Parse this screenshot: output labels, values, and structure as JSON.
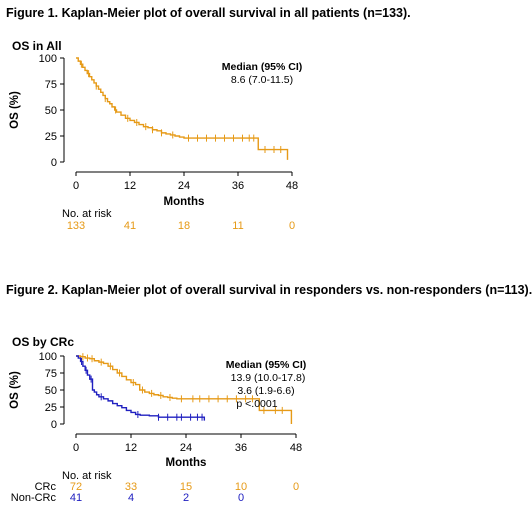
{
  "figure1": {
    "caption": "Figure 1. Kaplan-Meier plot of overall survival in all patients (n=133)."
  },
  "figure2": {
    "caption": "Figure 2. Kaplan-Meier plot of overall survival in responders vs. non-responders (n=113)."
  },
  "colors": {
    "orange": "#E69A17",
    "blue": "#2020C0",
    "axis": "#000000"
  },
  "chart_data": [
    {
      "type": "line",
      "title": "OS in All",
      "xlabel": "Months",
      "ylabel": "OS (%)",
      "xlim": [
        0,
        48
      ],
      "ylim": [
        0,
        100
      ],
      "xticks": [
        0,
        12,
        24,
        36,
        48
      ],
      "yticks": [
        0,
        25,
        50,
        75,
        100
      ],
      "annotation": {
        "heading": "Median (95% CI)",
        "lines": [
          "8.6 (7.0-11.5)"
        ]
      },
      "risk_table": {
        "title": "No. at risk",
        "rows": [
          {
            "label": "",
            "values": [
              "133",
              "41",
              "18",
              "11",
              "0"
            ]
          }
        ]
      },
      "series": [
        {
          "name": "All",
          "x": [
            0,
            0.5,
            1,
            1.5,
            2,
            2.5,
            3,
            3.5,
            4,
            4.5,
            5,
            5.5,
            6,
            6.5,
            7,
            7.5,
            8,
            8.6,
            9,
            10,
            11,
            12,
            13,
            14,
            15,
            16,
            17,
            18,
            19,
            20,
            21,
            22,
            23,
            24,
            26,
            28,
            30,
            32,
            34,
            36,
            38,
            40,
            40.5,
            44,
            46,
            47
          ],
          "y": [
            100,
            97,
            94,
            91,
            88,
            85,
            82,
            79,
            76,
            73,
            70,
            67,
            64,
            61,
            58,
            56,
            53,
            50,
            48,
            45,
            42,
            40,
            38,
            36,
            34,
            33,
            31,
            30,
            28,
            27,
            26,
            25,
            24,
            23,
            23,
            23,
            23,
            23,
            23,
            23,
            23,
            23,
            12,
            12,
            12,
            2
          ],
          "censor_x": [
            1.2,
            2.8,
            4.5,
            6.5,
            8.8,
            11.5,
            13.5,
            15.5,
            17,
            19,
            21.5,
            25,
            27,
            29,
            31,
            33,
            35,
            37,
            38.5,
            39.5,
            42,
            44,
            45.5
          ]
        }
      ]
    },
    {
      "type": "line",
      "title": "OS by CRc",
      "xlabel": "Months",
      "ylabel": "OS (%)",
      "xlim": [
        0,
        48
      ],
      "ylim": [
        0,
        100
      ],
      "xticks": [
        0,
        12,
        24,
        36,
        48
      ],
      "yticks": [
        0,
        25,
        50,
        75,
        100
      ],
      "annotation": {
        "heading": "Median (95% CI)",
        "lines": [
          "13.9 (10.0-17.8)",
          "3.6 (1.9-6.6)",
          "p <.0001"
        ]
      },
      "risk_table": {
        "title": "No. at risk",
        "rows": [
          {
            "label": "CRc",
            "values": [
              "72",
              "33",
              "15",
              "10",
              "0"
            ]
          },
          {
            "label": "Non-CRc",
            "values": [
              "41",
              "4",
              "2",
              "0",
              ""
            ]
          }
        ]
      },
      "series": [
        {
          "name": "CRc",
          "x": [
            0,
            1,
            2,
            3,
            4,
            5,
            6,
            7,
            8,
            9,
            10,
            11,
            12,
            13,
            13.9,
            15,
            16,
            17,
            18,
            19,
            20,
            21,
            22,
            24,
            28,
            32,
            36,
            38,
            39,
            40,
            46,
            47
          ],
          "y": [
            100,
            99,
            97,
            96,
            93,
            91,
            89,
            85,
            80,
            75,
            70,
            65,
            61,
            58,
            50,
            47,
            45,
            43,
            42,
            40,
            39,
            38,
            37,
            37,
            37,
            37,
            37,
            37,
            37,
            20,
            20,
            0
          ],
          "censor_x": [
            1.5,
            2.5,
            3.5,
            5.5,
            7.5,
            9.5,
            12.5,
            14.5,
            16.5,
            18.5,
            20.5,
            23,
            25.5,
            27,
            29,
            31,
            33,
            35,
            37,
            38.5,
            41,
            43.5,
            45
          ]
        },
        {
          "name": "Non-CRc",
          "x": [
            0,
            0.5,
            1,
            1.5,
            2,
            2.5,
            3,
            3.6,
            4,
            4.5,
            5,
            6,
            7,
            8,
            9,
            10,
            11,
            12,
            13,
            14,
            16,
            18,
            20,
            22,
            24,
            26,
            27,
            28
          ],
          "y": [
            100,
            97,
            92,
            85,
            79,
            72,
            66,
            50,
            47,
            43,
            40,
            37,
            34,
            30,
            27,
            24,
            20,
            17,
            14,
            13,
            12,
            10,
            10,
            10,
            10,
            10,
            10,
            5
          ],
          "censor_x": [
            1.2,
            2.2,
            3.3,
            5.5,
            13.5,
            18,
            20,
            22,
            23,
            25,
            26.5,
            27.5
          ]
        }
      ]
    }
  ]
}
